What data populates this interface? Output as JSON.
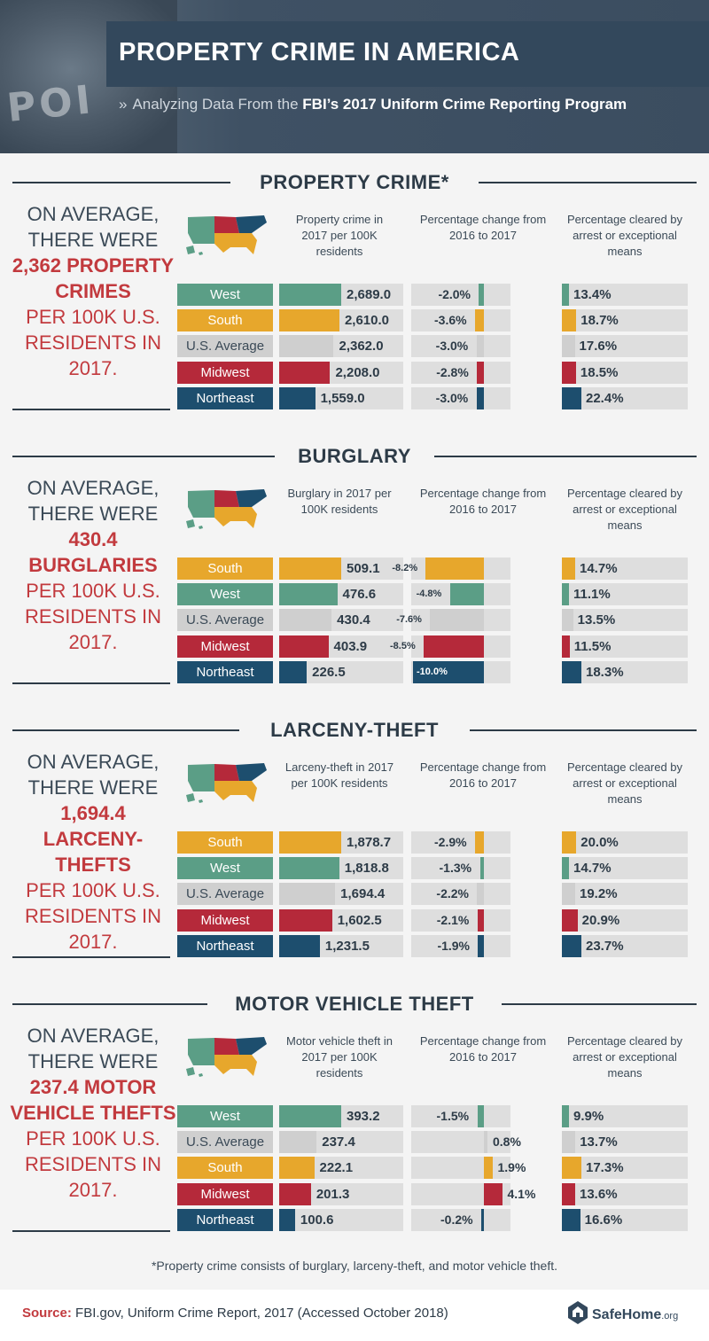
{
  "header": {
    "title": "PROPERTY CRIME IN AMERICA",
    "subtitle_prefix": "Analyzing Data From the ",
    "subtitle_bold": "FBI’s 2017 Uniform Crime Reporting Program",
    "photo_text": "POI"
  },
  "colors": {
    "West": "#5b9e86",
    "South": "#e7a72c",
    "U.S. Average": "#cfcfcf",
    "Midwest": "#b5293a",
    "Northeast": "#1d4e6e",
    "track": "#dedede",
    "accent": "#c23a3e",
    "dark": "#2d3b47"
  },
  "sections": [
    {
      "title": "PROPERTY CRIME*",
      "left_l1": "ON AVERAGE,",
      "left_l2": "THERE WERE",
      "left_hl": "2,362 PROPERTY CRIMES",
      "left_rest": "PER 100K U.S. RESIDENTS IN 2017.",
      "col1": "Property crime in 2017 per 100K residents",
      "col2": "Percentage change from 2016 to 2017",
      "col3": "Percentage cleared by arrest or exceptional means"
    },
    {
      "title": "BURGLARY",
      "left_l1": "ON AVERAGE,",
      "left_l2": "THERE WERE",
      "left_hl": "430.4 BURGLARIES",
      "left_rest": "PER 100K U.S. RESIDENTS IN 2017.",
      "col1": "Burglary in 2017 per 100K residents",
      "col2": "Percentage change from 2016 to 2017",
      "col3": "Percentage cleared by arrest or exceptional means"
    },
    {
      "title": "LARCENY-THEFT",
      "left_l1": "ON AVERAGE,",
      "left_l2": "THERE WERE",
      "left_hl": "1,694.4 LARCENY-THEFTS",
      "left_rest": "PER 100K U.S. RESIDENTS IN 2017.",
      "col1": "Larceny-theft in 2017 per 100K residents",
      "col2": "Percentage change from 2016 to 2017",
      "col3": "Percentage cleared by arrest or exceptional means"
    },
    {
      "title": "MOTOR VEHICLE THEFT",
      "left_l1": "ON AVERAGE,",
      "left_l2": "THERE WERE",
      "left_hl": "237.4 MOTOR VEHICLE THEFTS",
      "left_rest": "PER 100K U.S. RESIDENTS IN 2017.",
      "col1": "Motor vehicle theft in 2017 per 100K residents",
      "col2": "Percentage change from 2016 to 2017",
      "col3": "Percentage cleared by arrest or exceptional means"
    }
  ],
  "chart_data": [
    {
      "type": "table",
      "title": "PROPERTY CRIME*",
      "columns": [
        "Property crime in 2017 per 100K residents",
        "Percentage change from 2016 to 2017",
        "Percentage cleared by arrest or exceptional means"
      ],
      "rows": [
        {
          "region": "West",
          "rate": 2689.0,
          "rate_label": "2,689.0",
          "change": -2.0,
          "change_label": "-2.0%",
          "cleared": 13.4,
          "cleared_label": "13.4%"
        },
        {
          "region": "South",
          "rate": 2610.0,
          "rate_label": "2,610.0",
          "change": -3.6,
          "change_label": "-3.6%",
          "cleared": 18.7,
          "cleared_label": "18.7%"
        },
        {
          "region": "U.S. Average",
          "rate": 2362.0,
          "rate_label": "2,362.0",
          "change": -3.0,
          "change_label": "-3.0%",
          "cleared": 17.6,
          "cleared_label": "17.6%"
        },
        {
          "region": "Midwest",
          "rate": 2208.0,
          "rate_label": "2,208.0",
          "change": -2.8,
          "change_label": "-2.8%",
          "cleared": 18.5,
          "cleared_label": "18.5%"
        },
        {
          "region": "Northeast",
          "rate": 1559.0,
          "rate_label": "1,559.0",
          "change": -3.0,
          "change_label": "-3.0%",
          "cleared": 22.4,
          "cleared_label": "22.4%"
        }
      ]
    },
    {
      "type": "table",
      "title": "BURGLARY",
      "columns": [
        "Burglary in 2017 per 100K residents",
        "Percentage change from 2016 to 2017",
        "Percentage cleared by arrest or exceptional means"
      ],
      "rows": [
        {
          "region": "South",
          "rate": 509.1,
          "rate_label": "509.1",
          "change": -8.2,
          "change_label": "-8.2%",
          "cleared": 14.7,
          "cleared_label": "14.7%"
        },
        {
          "region": "West",
          "rate": 476.6,
          "rate_label": "476.6",
          "change": -4.8,
          "change_label": "-4.8%",
          "cleared": 11.1,
          "cleared_label": "11.1%"
        },
        {
          "region": "U.S. Average",
          "rate": 430.4,
          "rate_label": "430.4",
          "change": -7.6,
          "change_label": "-7.6%",
          "cleared": 13.5,
          "cleared_label": "13.5%"
        },
        {
          "region": "Midwest",
          "rate": 403.9,
          "rate_label": "403.9",
          "change": -8.5,
          "change_label": "-8.5%",
          "cleared": 11.5,
          "cleared_label": "11.5%"
        },
        {
          "region": "Northeast",
          "rate": 226.5,
          "rate_label": "226.5",
          "change": -10.0,
          "change_label": "-10.0%",
          "cleared": 18.3,
          "cleared_label": "18.3%"
        }
      ]
    },
    {
      "type": "table",
      "title": "LARCENY-THEFT",
      "columns": [
        "Larceny-theft in 2017 per 100K residents",
        "Percentage change from 2016 to 2017",
        "Percentage cleared by arrest or exceptional means"
      ],
      "rows": [
        {
          "region": "South",
          "rate": 1878.7,
          "rate_label": "1,878.7",
          "change": -2.9,
          "change_label": "-2.9%",
          "cleared": 20.0,
          "cleared_label": "20.0%"
        },
        {
          "region": "West",
          "rate": 1818.8,
          "rate_label": "1,818.8",
          "change": -1.3,
          "change_label": "-1.3%",
          "cleared": 14.7,
          "cleared_label": "14.7%"
        },
        {
          "region": "U.S. Average",
          "rate": 1694.4,
          "rate_label": "1,694.4",
          "change": -2.2,
          "change_label": "-2.2%",
          "cleared": 19.2,
          "cleared_label": "19.2%"
        },
        {
          "region": "Midwest",
          "rate": 1602.5,
          "rate_label": "1,602.5",
          "change": -2.1,
          "change_label": "-2.1%",
          "cleared": 20.9,
          "cleared_label": "20.9%"
        },
        {
          "region": "Northeast",
          "rate": 1231.5,
          "rate_label": "1,231.5",
          "change": -1.9,
          "change_label": "-1.9%",
          "cleared": 23.7,
          "cleared_label": "23.7%"
        }
      ]
    },
    {
      "type": "table",
      "title": "MOTOR VEHICLE THEFT",
      "columns": [
        "Motor vehicle theft in 2017 per 100K residents",
        "Percentage change from 2016 to 2017",
        "Percentage cleared by arrest or exceptional means"
      ],
      "rows": [
        {
          "region": "West",
          "rate": 393.2,
          "rate_label": "393.2",
          "change": -1.5,
          "change_label": "-1.5%",
          "cleared": 9.9,
          "cleared_label": "9.9%"
        },
        {
          "region": "U.S. Average",
          "rate": 237.4,
          "rate_label": "237.4",
          "change": 0.8,
          "change_label": "0.8%",
          "cleared": 13.7,
          "cleared_label": "13.7%"
        },
        {
          "region": "South",
          "rate": 222.1,
          "rate_label": "222.1",
          "change": 1.9,
          "change_label": "1.9%",
          "cleared": 17.3,
          "cleared_label": "17.3%"
        },
        {
          "region": "Midwest",
          "rate": 201.3,
          "rate_label": "201.3",
          "change": 4.1,
          "change_label": "4.1%",
          "cleared": 13.6,
          "cleared_label": "13.6%"
        },
        {
          "region": "Northeast",
          "rate": 100.6,
          "rate_label": "100.6",
          "change": -0.2,
          "change_label": "-0.2%",
          "cleared": 16.6,
          "cleared_label": "16.6%"
        }
      ]
    }
  ],
  "footnote": "*Property crime consists of burglary, larceny-theft, and motor vehicle theft.",
  "footer": {
    "source_label": "Source:",
    "source_text": " FBI.gov, Uniform Crime Report, 2017 (Accessed October 2018)",
    "logo_name": "SafeHome",
    "logo_tld": ".org"
  }
}
